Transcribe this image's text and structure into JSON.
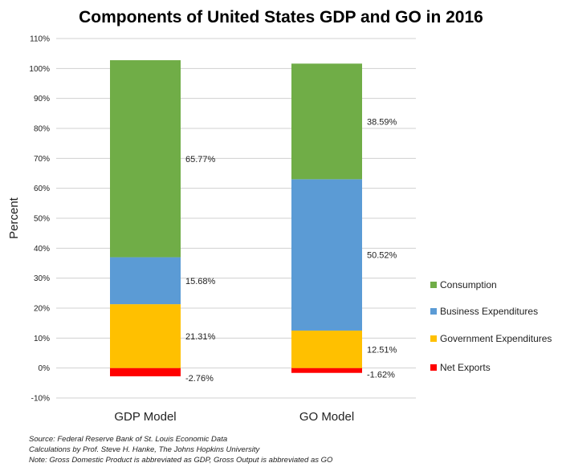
{
  "chart_data": {
    "type": "bar",
    "stacked": true,
    "title": "Components of United States GDP and GO in 2016",
    "ylabel": "Percent",
    "xlabel": "",
    "ylim": [
      -10,
      110
    ],
    "yticks": [
      "-10%",
      "0%",
      "10%",
      "20%",
      "30%",
      "40%",
      "50%",
      "60%",
      "70%",
      "80%",
      "90%",
      "100%",
      "110%"
    ],
    "grid": true,
    "legend_position": "right",
    "categories": [
      "GDP Model",
      "GO Model"
    ],
    "series": [
      {
        "name": "Consumption",
        "color": "#70AD47",
        "values": [
          65.77,
          38.59
        ],
        "labels": [
          "65.77%",
          "38.59%"
        ]
      },
      {
        "name": "Business Expenditures",
        "color": "#5B9BD5",
        "values": [
          15.68,
          50.52
        ],
        "labels": [
          "15.68%",
          "50.52%"
        ]
      },
      {
        "name": "Government Expenditures",
        "color": "#FFC000",
        "values": [
          21.31,
          12.51
        ],
        "labels": [
          "21.31%",
          "12.51%"
        ]
      },
      {
        "name": "Net Exports",
        "color": "#FF0000",
        "values": [
          -2.76,
          -1.62
        ],
        "labels": [
          "-2.76%",
          "-1.62%"
        ]
      }
    ]
  },
  "notes": {
    "source": "Source: Federal Reserve Bank of St. Louis Economic Data",
    "calculations": "Calculations by Prof. Steve H. Hanke, The Johns Hopkins University",
    "note": "Note: Gross Domestic Product is abbreviated as GDP, Gross Output is abbreviated as GO"
  }
}
